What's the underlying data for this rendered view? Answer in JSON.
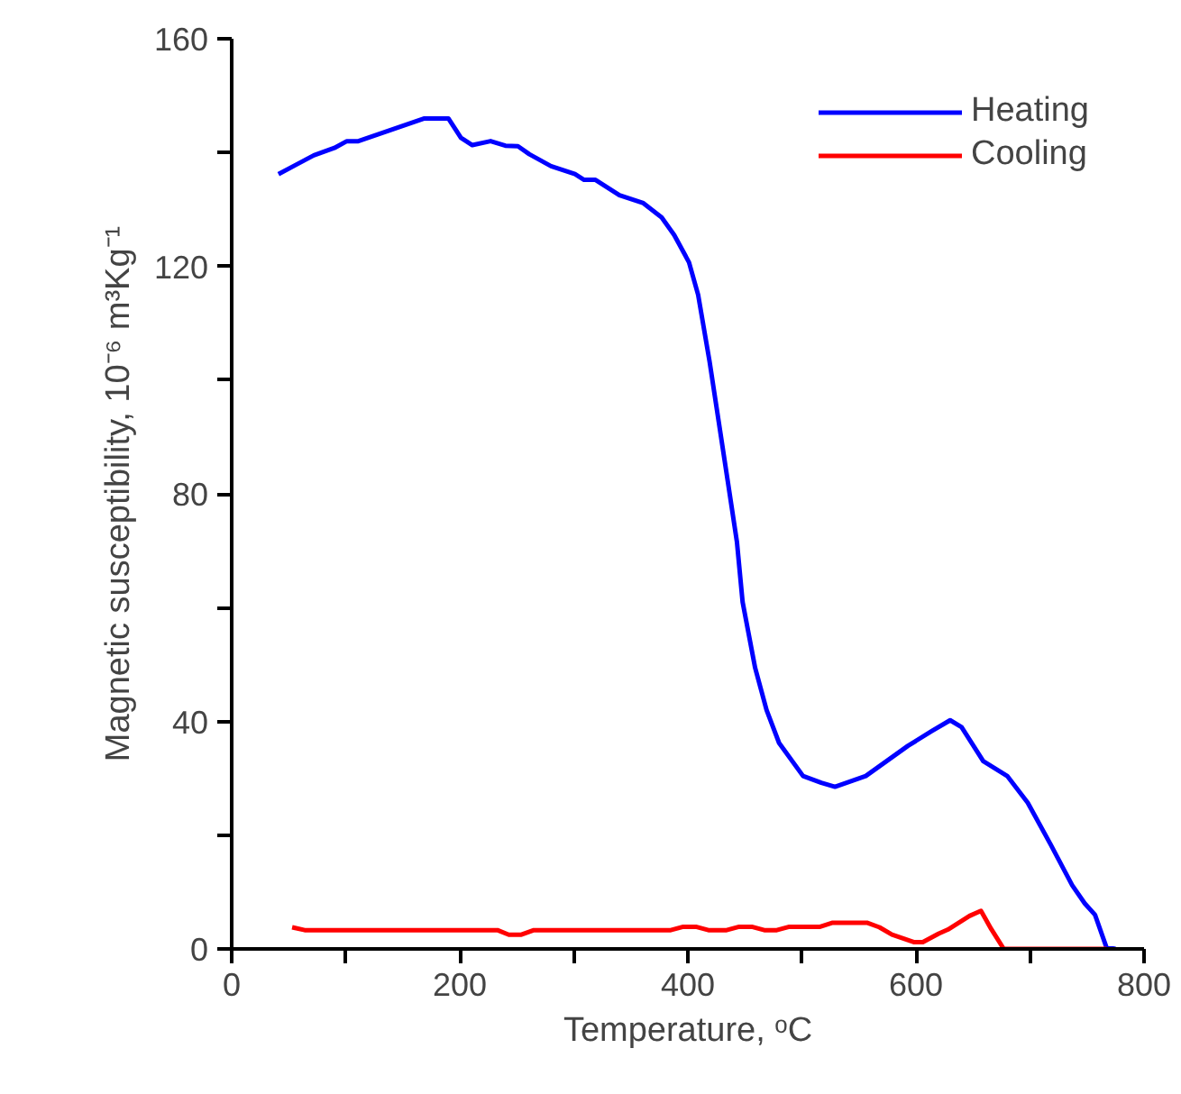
{
  "chart_data": {
    "type": "line",
    "xlabel": "Temperature, ᵒC",
    "ylabel": "Magnetic susceptibility, 10⁻⁶ m³Kg⁻¹",
    "xlim": [
      0,
      800
    ],
    "ylim": [
      0,
      160
    ],
    "xticks": [
      0,
      {
        "value": 100,
        "label": null
      },
      200,
      {
        "value": 300,
        "label": null
      },
      400,
      {
        "value": 500,
        "label": null
      },
      600,
      {
        "value": 700,
        "label": null
      },
      800
    ],
    "yticks": [
      0,
      {
        "value": 20,
        "label": null
      },
      40,
      {
        "value": 60,
        "label": null
      },
      80,
      {
        "value": 100,
        "label": null
      },
      120,
      {
        "value": 140,
        "label": null
      },
      160
    ],
    "grid": false,
    "legend": "top right",
    "marker": "none",
    "line_style": "solid",
    "series": [
      {
        "name": "Heating",
        "color": "#0000ff",
        "x": [
          41,
          56,
          72,
          90,
          101,
          111,
          169,
          190,
          201,
          211,
          227,
          240,
          251,
          261,
          280,
          301,
          309,
          319,
          340,
          361,
          377,
          388,
          401,
          409,
          419,
          435,
          443,
          448,
          459,
          469,
          480,
          501,
          517,
          529,
          556,
          593,
          614,
          630,
          640,
          659,
          680,
          698,
          718,
          737,
          748,
          757,
          767,
          775
        ],
        "values": [
          136.2,
          137.8,
          139.5,
          140.8,
          142,
          142,
          146,
          146,
          142.6,
          141.3,
          142,
          141.2,
          141.1,
          139.7,
          137.6,
          136.2,
          135.2,
          135.2,
          132.5,
          131.1,
          128.6,
          125.5,
          120.7,
          115,
          103.3,
          82.2,
          71.6,
          61,
          49.4,
          42,
          36.2,
          30.4,
          29.2,
          28.5,
          30.4,
          35.7,
          38.3,
          40.2,
          39,
          33,
          30.4,
          25.7,
          18.4,
          11.2,
          8,
          6,
          0.3,
          0
        ]
      },
      {
        "name": "Cooling",
        "color": "#ff0000",
        "x": [
          53,
          64,
          233,
          243,
          254,
          265,
          385,
          396,
          407,
          418,
          434,
          445,
          456,
          467,
          478,
          489,
          516,
          527,
          557,
          568,
          579,
          598,
          606,
          620,
          628,
          647,
          657,
          666,
          677,
          688,
          767
        ],
        "values": [
          3.8,
          3.3,
          3.3,
          2.5,
          2.5,
          3.3,
          3.3,
          3.9,
          3.9,
          3.3,
          3.3,
          3.9,
          3.9,
          3.3,
          3.3,
          3.9,
          3.9,
          4.6,
          4.6,
          3.8,
          2.5,
          1.2,
          1.2,
          2.7,
          3.4,
          5.8,
          6.7,
          3.5,
          0,
          0,
          0
        ]
      }
    ]
  }
}
